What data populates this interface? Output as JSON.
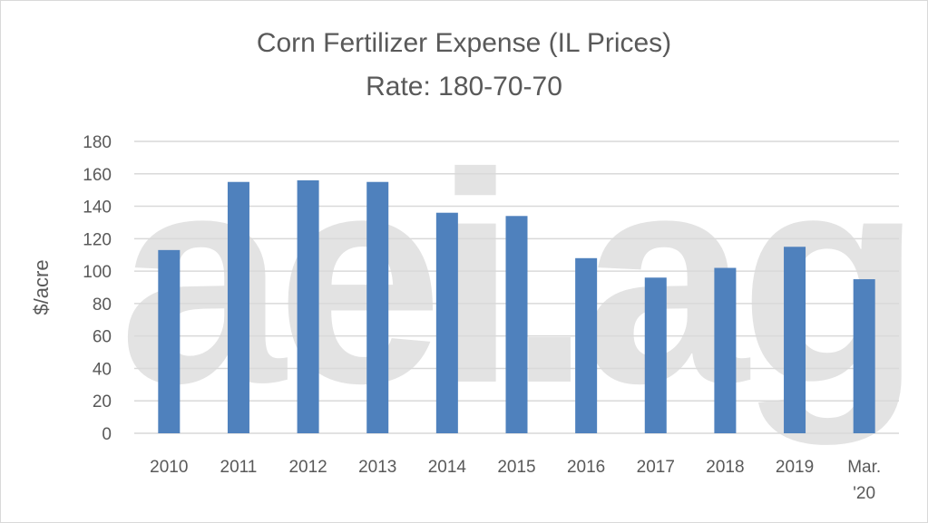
{
  "chart_data": {
    "type": "bar",
    "title": "Corn Fertilizer Expense (IL Prices)",
    "subtitle": "Rate: 180-70-70",
    "ylabel": "$/acre",
    "xlabel": "",
    "ylim": [
      0,
      180
    ],
    "yticks": [
      0,
      20,
      40,
      60,
      80,
      100,
      120,
      140,
      160,
      180
    ],
    "grid": true,
    "categories": [
      "2010",
      "2011",
      "2012",
      "2013",
      "2014",
      "2015",
      "2016",
      "2017",
      "2018",
      "2019",
      "Mar. '20"
    ],
    "values": [
      113,
      155,
      156,
      155,
      136,
      134,
      108,
      96,
      102,
      115,
      95
    ],
    "bar_color": "#4f81bd",
    "watermark": "aei.ag"
  }
}
